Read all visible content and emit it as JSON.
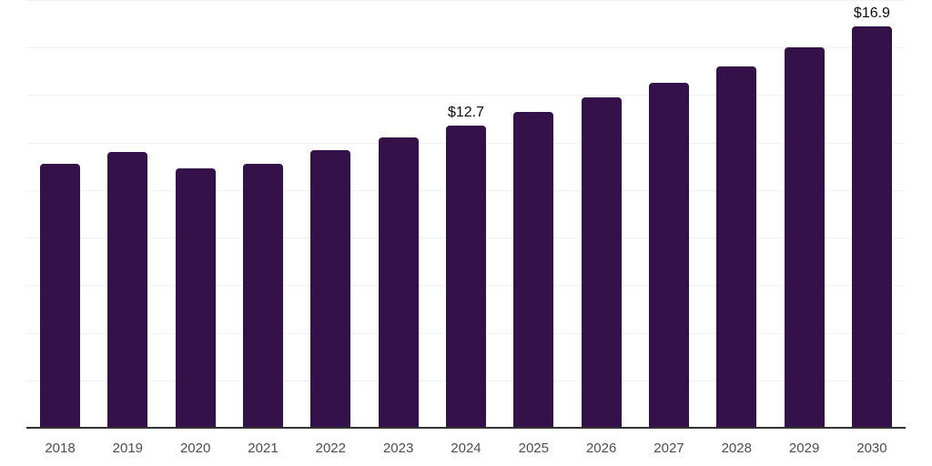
{
  "chart_data": {
    "type": "bar",
    "title": "",
    "xlabel": "",
    "ylabel": "",
    "categories": [
      "2018",
      "2019",
      "2020",
      "2021",
      "2022",
      "2023",
      "2024",
      "2025",
      "2026",
      "2027",
      "2028",
      "2029",
      "2030"
    ],
    "values": [
      11.1,
      11.6,
      10.9,
      11.1,
      11.7,
      12.2,
      12.7,
      13.3,
      13.9,
      14.5,
      15.2,
      16.0,
      16.9
    ],
    "data_labels": {
      "2024": "$12.7",
      "2030": "$16.9"
    },
    "ylim": [
      0,
      18
    ],
    "gridline_step": 2,
    "grid": "horizontal",
    "legend_position": "none",
    "y_tick_labels_visible": false,
    "colors": {
      "bar": "#341148",
      "gridline": "#f2f2f2",
      "axis_line": "#333333",
      "tick_label": "#4d4d4d",
      "data_label": "#0d0d0d",
      "background": "#ffffff"
    }
  }
}
